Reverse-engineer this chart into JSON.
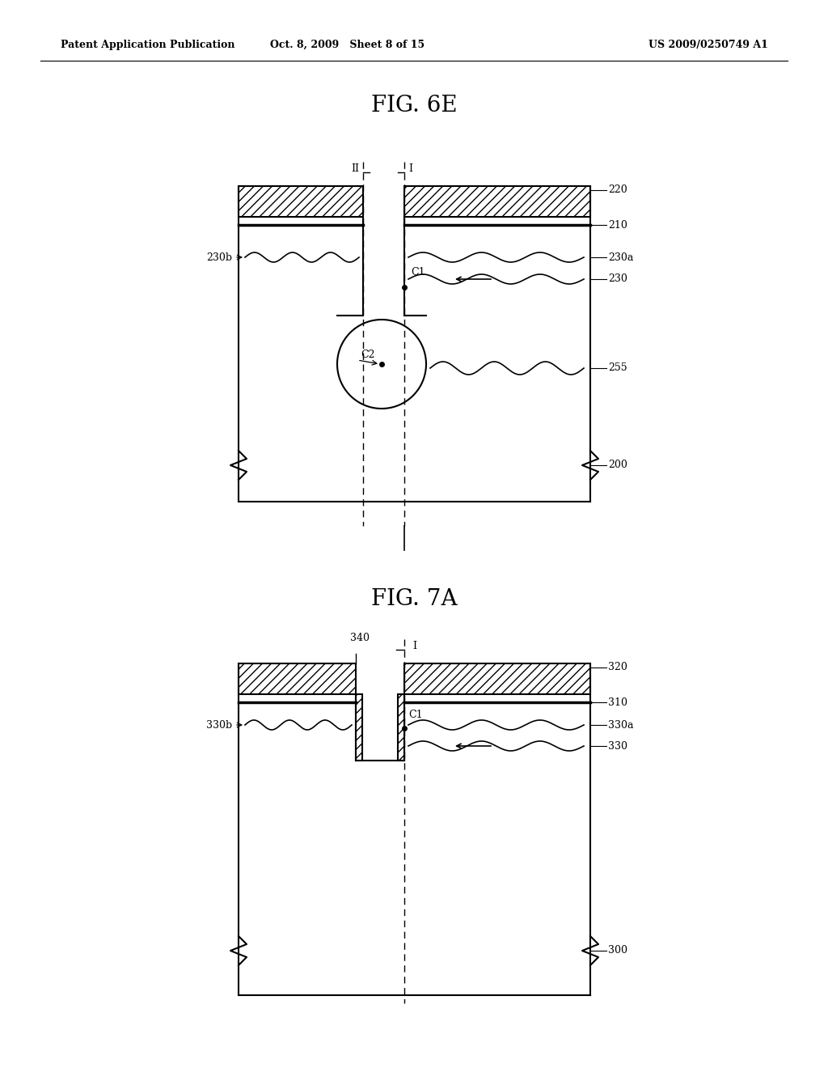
{
  "bg_color": "#ffffff",
  "line_color": "#000000",
  "fig_title1": "FIG. 6E",
  "fig_title2": "FIG. 7A",
  "header_left": "Patent Application Publication",
  "header_mid": "Oct. 8, 2009   Sheet 8 of 15",
  "header_right": "US 2009/0250749 A1",
  "label_fontsize": 9,
  "title_fontsize": 20
}
